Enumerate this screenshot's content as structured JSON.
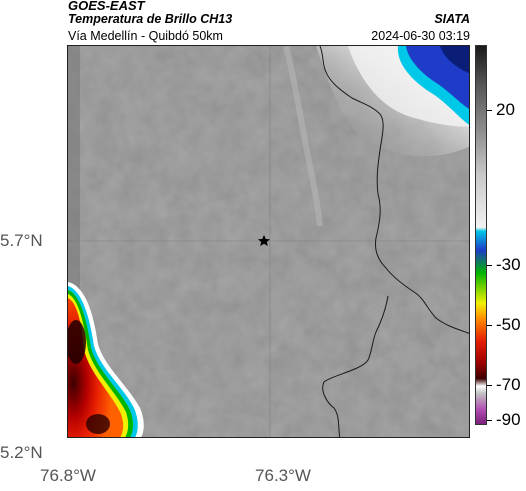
{
  "header": {
    "satellite": "GOES-EAST",
    "product": "Temperatura de Brillo CH13",
    "region": "Vía Medellín - Quibdó 50km",
    "organization": "SIATA",
    "timestamp": "2024-06-30 03:19"
  },
  "map": {
    "latitude_labels": [
      "5.7°N",
      "5.2°N"
    ],
    "longitude_labels": [
      "76.8°W",
      "76.3°W"
    ],
    "marker_icon": "star-icon"
  },
  "colorbar": {
    "labels": [
      "20",
      "-30",
      "-50",
      "-70",
      "-90"
    ],
    "colors": {
      "gray_low": "#f2f2f2",
      "gray_high": "#1a1a1a",
      "cyan": "#00c8e8",
      "blue": "#1e3cc8",
      "green": "#00b400",
      "yellow": "#f0f000",
      "red": "#e61e00",
      "dark_red": "#3c0000",
      "magenta": "#b450b4"
    }
  }
}
